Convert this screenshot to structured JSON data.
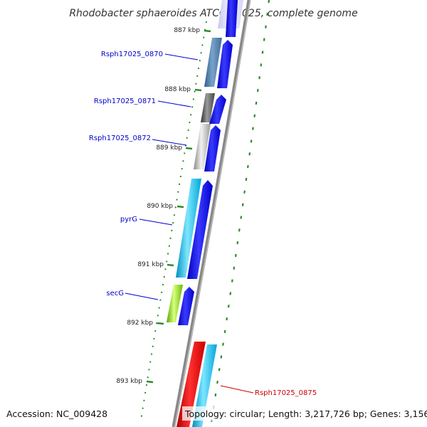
{
  "title": "Rhodobacter sphaeroides ATCC 17025, complete genome",
  "positions": [
    "887 kbp",
    "888 kbp",
    "889 kbp",
    "890 kbp",
    "891 kbp",
    "892 kbp",
    "893 kbp"
  ],
  "genes": [
    {
      "name": "Rsph17025_0870",
      "color": "#0000cc"
    },
    {
      "name": "Rsph17025_0871",
      "color": "#0000cc"
    },
    {
      "name": "Rsph17025_0872",
      "color": "#0000cc"
    },
    {
      "name": "pyrG",
      "color": "#0000cc"
    },
    {
      "name": "secG",
      "color": "#0000cc"
    },
    {
      "name": "Rsph17025_0875",
      "color": "#cc0000"
    }
  ],
  "colors": {
    "gene_forward": "#0000ee",
    "ruler_tick": "#2e8b2e",
    "backbone": "#888888",
    "highlight": "#ee0000"
  },
  "footer": {
    "accession": "Accession: NC_009428",
    "summary": "Topology: circular; Length: 3,217,726 bp; Genes: 3,156"
  }
}
